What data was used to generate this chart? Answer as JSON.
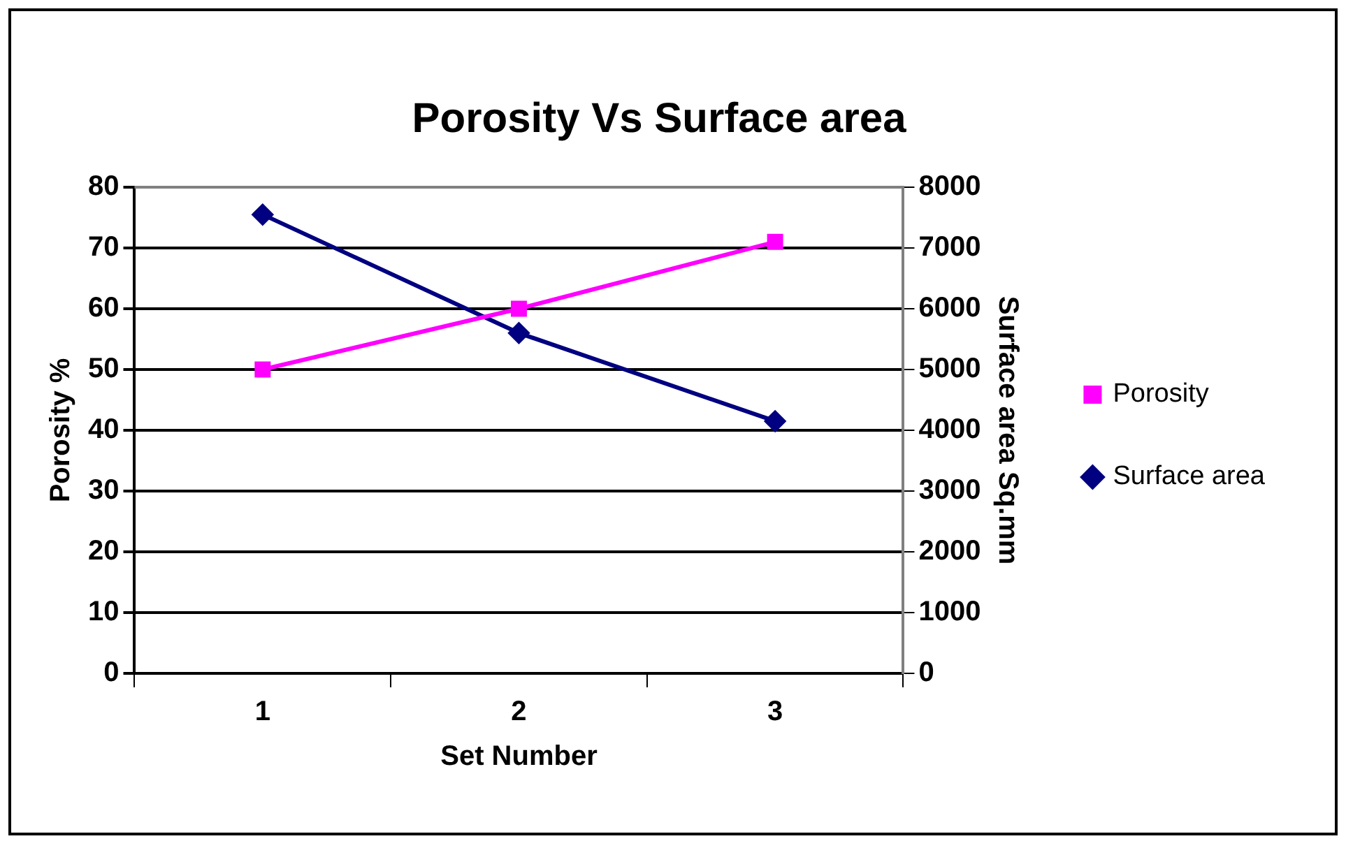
{
  "chart_data": {
    "type": "line",
    "title": "Porosity Vs Surface area",
    "xlabel": "Set Number",
    "ylabel": "Porosity %",
    "y2label": "Surface area Sq.mm",
    "categories": [
      "1",
      "2",
      "3"
    ],
    "series": [
      {
        "name": "Porosity",
        "color": "#ff00ff",
        "values": [
          50,
          60,
          71
        ],
        "marker": "square"
      },
      {
        "name": "Surface area",
        "color": "#000080",
        "values": [
          7550,
          5600,
          4150
        ],
        "axis": "y2",
        "marker": "diamond"
      }
    ],
    "ylim": [
      0,
      80
    ],
    "yticks": [
      0,
      10,
      20,
      30,
      40,
      50,
      60,
      70,
      80
    ],
    "y2lim": [
      0,
      8000
    ],
    "y2ticks": [
      0,
      1000,
      2000,
      3000,
      4000,
      5000,
      6000,
      7000,
      8000
    ],
    "grid": "y",
    "legend": "right",
    "line_style": "solid"
  }
}
